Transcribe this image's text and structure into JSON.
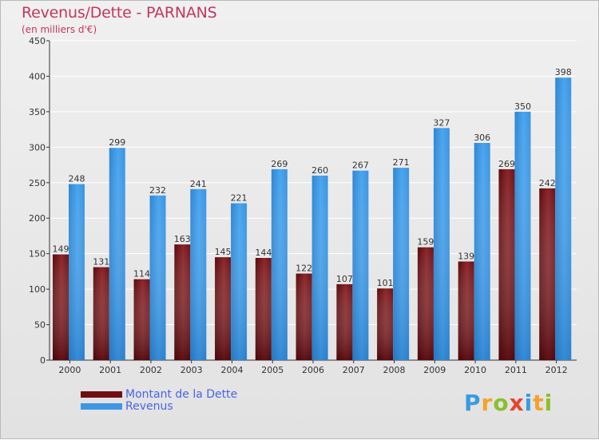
{
  "header": {
    "title": "Revenus/Dette - PARNANS",
    "subtitle": "(en milliers d'€)"
  },
  "legend": {
    "items": [
      {
        "label": "Montant de la Dette",
        "color": "#6e0f12"
      },
      {
        "label": "Revenus",
        "color": "#3d97e4"
      }
    ]
  },
  "branding": {
    "logo_text": "Proxiti"
  },
  "chart_data": {
    "type": "bar",
    "title": "Revenus/Dette - PARNANS",
    "subtitle": "(en milliers d'€)",
    "xlabel": "",
    "ylabel": "",
    "ylim": [
      0,
      450
    ],
    "yticks": [
      0,
      50,
      100,
      150,
      200,
      250,
      300,
      350,
      400,
      450
    ],
    "grid": true,
    "legend_position": "bottom-left",
    "categories": [
      "2000",
      "2001",
      "2002",
      "2003",
      "2004",
      "2005",
      "2006",
      "2007",
      "2008",
      "2009",
      "2010",
      "2011",
      "2012"
    ],
    "series": [
      {
        "name": "Montant de la Dette",
        "color": "#6e0f12",
        "values": [
          149,
          131,
          114,
          163,
          145,
          144,
          122,
          107,
          101,
          159,
          139,
          269,
          242
        ]
      },
      {
        "name": "Revenus",
        "color": "#3d97e4",
        "values": [
          248,
          299,
          232,
          241,
          221,
          269,
          260,
          267,
          271,
          327,
          306,
          350,
          398
        ]
      }
    ]
  }
}
